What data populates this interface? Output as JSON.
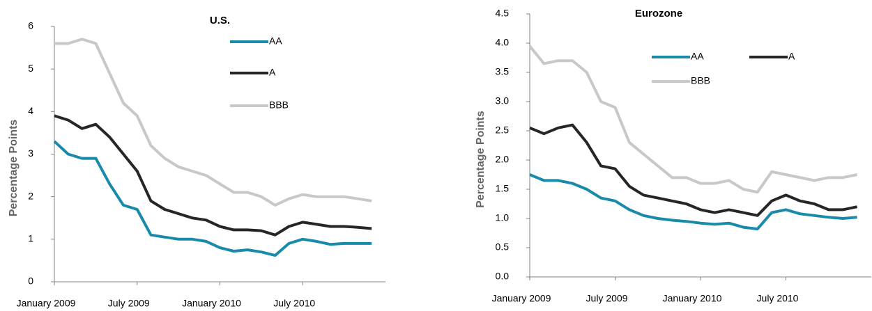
{
  "chart_data": [
    {
      "type": "line",
      "title": "U.S.",
      "y_label": "Percentage Points",
      "x": [
        "2009-01",
        "2009-02",
        "2009-03",
        "2009-04",
        "2009-05",
        "2009-06",
        "2009-07",
        "2009-08",
        "2009-09",
        "2009-10",
        "2009-11",
        "2009-12",
        "2010-01",
        "2010-02",
        "2010-03",
        "2010-04",
        "2010-05",
        "2010-06",
        "2010-07",
        "2010-08",
        "2010-09",
        "2010-10",
        "2010-11",
        "2010-12"
      ],
      "xlim": [
        "2009-01",
        "2011-01"
      ],
      "xticks": [
        {
          "value": "2009-01",
          "label": "January  2009"
        },
        {
          "value": "2009-07",
          "label": "July  2009"
        },
        {
          "value": "2010-01",
          "label": "January  2010"
        },
        {
          "value": "2010-07",
          "label": "July  2010"
        }
      ],
      "ylim": [
        0,
        6
      ],
      "yticks": [
        0,
        1,
        2,
        3,
        4,
        5,
        6
      ],
      "grid": false,
      "legend": "upper right",
      "series": [
        {
          "name": "AA",
          "color": "#1a8aab",
          "values": [
            3.3,
            3.0,
            2.9,
            2.9,
            2.3,
            1.8,
            1.7,
            1.1,
            1.05,
            1.0,
            1.0,
            0.95,
            0.8,
            0.72,
            0.75,
            0.7,
            0.62,
            0.9,
            1.0,
            0.95,
            0.88,
            0.9,
            0.9,
            0.9
          ]
        },
        {
          "name": "A",
          "color": "#262626",
          "values": [
            3.9,
            3.8,
            3.6,
            3.7,
            3.4,
            3.0,
            2.6,
            1.9,
            1.7,
            1.6,
            1.5,
            1.45,
            1.3,
            1.22,
            1.22,
            1.2,
            1.1,
            1.3,
            1.4,
            1.35,
            1.3,
            1.3,
            1.28,
            1.25
          ]
        },
        {
          "name": "BBB",
          "color": "#c8c8c8",
          "values": [
            5.6,
            5.6,
            5.7,
            5.6,
            4.9,
            4.2,
            3.9,
            3.2,
            2.9,
            2.7,
            2.6,
            2.5,
            2.3,
            2.1,
            2.1,
            2.0,
            1.8,
            1.95,
            2.05,
            2.0,
            2.0,
            2.0,
            1.95,
            1.9
          ]
        }
      ]
    },
    {
      "type": "line",
      "title": "Eurozone",
      "y_label": "Percentage Points",
      "x": [
        "2009-01",
        "2009-02",
        "2009-03",
        "2009-04",
        "2009-05",
        "2009-06",
        "2009-07",
        "2009-08",
        "2009-09",
        "2009-10",
        "2009-11",
        "2009-12",
        "2010-01",
        "2010-02",
        "2010-03",
        "2010-04",
        "2010-05",
        "2010-06",
        "2010-07",
        "2010-08",
        "2010-09",
        "2010-10",
        "2010-11",
        "2010-12"
      ],
      "xlim": [
        "2009-01",
        "2011-01"
      ],
      "xticks": [
        {
          "value": "2009-01",
          "label": "January  2009"
        },
        {
          "value": "2009-07",
          "label": "July  2009"
        },
        {
          "value": "2010-01",
          "label": "January  2010"
        },
        {
          "value": "2010-07",
          "label": "July  2010"
        }
      ],
      "ylim": [
        0,
        4.5
      ],
      "yticks": [
        {
          "value": 0,
          "label": "0.0"
        },
        0.5,
        {
          "value": 1,
          "label": "1.0"
        },
        1.5,
        {
          "value": 2,
          "label": "2.0"
        },
        2.5,
        {
          "value": 3,
          "label": "3.0"
        },
        3.5,
        {
          "value": 4,
          "label": "4.0"
        },
        4.5
      ],
      "grid": false,
      "legend": "upper right",
      "series": [
        {
          "name": "AA",
          "color": "#1a8aab",
          "values": [
            1.75,
            1.65,
            1.65,
            1.6,
            1.5,
            1.35,
            1.3,
            1.15,
            1.05,
            1.0,
            0.97,
            0.95,
            0.92,
            0.9,
            0.92,
            0.85,
            0.82,
            1.1,
            1.15,
            1.08,
            1.05,
            1.02,
            1.0,
            1.02
          ]
        },
        {
          "name": "A",
          "color": "#262626",
          "values": [
            2.55,
            2.45,
            2.55,
            2.6,
            2.3,
            1.9,
            1.85,
            1.55,
            1.4,
            1.35,
            1.3,
            1.25,
            1.15,
            1.1,
            1.15,
            1.1,
            1.05,
            1.3,
            1.4,
            1.3,
            1.25,
            1.15,
            1.15,
            1.2
          ]
        },
        {
          "name": "BBB",
          "color": "#c8c8c8",
          "values": [
            3.95,
            3.65,
            3.7,
            3.7,
            3.5,
            3.0,
            2.9,
            2.3,
            2.1,
            1.9,
            1.7,
            1.7,
            1.6,
            1.6,
            1.65,
            1.5,
            1.45,
            1.8,
            1.75,
            1.7,
            1.65,
            1.7,
            1.7,
            1.75
          ]
        }
      ]
    }
  ]
}
